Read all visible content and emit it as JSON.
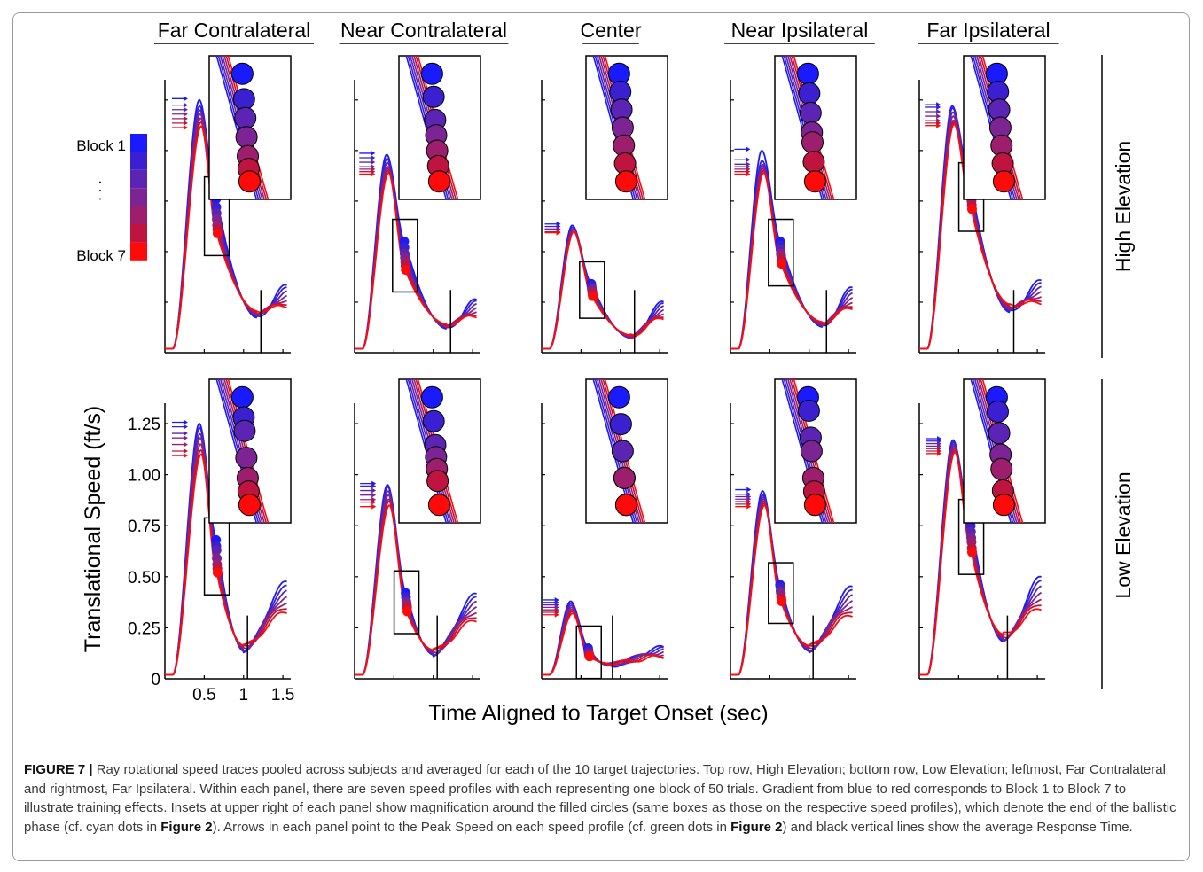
{
  "chart_data": {
    "type": "line",
    "title": "",
    "columns": [
      "Far Contralateral",
      "Near Contralateral",
      "Center",
      "Near Ipsilateral",
      "Far Ipsilateral"
    ],
    "rows": [
      "High Elevation",
      "Low Elevation"
    ],
    "xlabel": "Time Aligned to Target Onset (sec)",
    "ylabel": "Translational Speed (ft/s)",
    "x_ticks": [
      "0.5",
      "1",
      "1.5"
    ],
    "y_ticks": [
      "0",
      "0.25",
      "0.50",
      "0.75",
      "1.00",
      "1.25"
    ],
    "xlim": [
      0,
      1.6
    ],
    "ylim": [
      0,
      1.35
    ],
    "legend": {
      "top_label": "Block 1",
      "ellipsis": ". . .",
      "bottom_label": "Block 7",
      "colors": [
        "#1a1aff",
        "#3a20d0",
        "#5c24b4",
        "#7c2494",
        "#9c1e6c",
        "#c01440",
        "#ff0a0a"
      ]
    },
    "series_names": [
      "Block 1",
      "Block 2",
      "Block 3",
      "Block 4",
      "Block 5",
      "Block 6",
      "Block 7"
    ],
    "panels": [
      {
        "row": "High Elevation",
        "column": "Far Contralateral",
        "peak_time": 0.45,
        "peak_speeds": [
          1.25,
          1.22,
          1.2,
          1.18,
          1.16,
          1.14,
          1.12
        ],
        "end_time": 0.66,
        "end_speeds": [
          0.76,
          0.72,
          0.69,
          0.66,
          0.63,
          0.61,
          0.59
        ],
        "response_time": 1.22,
        "trough_speed": 0.19,
        "final_speed": 0.28
      },
      {
        "row": "High Elevation",
        "column": "Near Contralateral",
        "peak_time": 0.42,
        "peak_speeds": [
          0.98,
          0.96,
          0.94,
          0.92,
          0.91,
          0.9,
          0.89
        ],
        "end_time": 0.64,
        "end_speeds": [
          0.55,
          0.52,
          0.49,
          0.47,
          0.45,
          0.43,
          0.41
        ],
        "response_time": 1.22,
        "trough_speed": 0.13,
        "final_speed": 0.22
      },
      {
        "row": "High Elevation",
        "column": "Center",
        "peak_time": 0.4,
        "peak_speeds": [
          0.63,
          0.62,
          0.61,
          0.61,
          0.6,
          0.6,
          0.6
        ],
        "end_time": 0.64,
        "end_speeds": [
          0.34,
          0.33,
          0.32,
          0.31,
          0.3,
          0.29,
          0.28
        ],
        "response_time": 1.18,
        "trough_speed": 0.08,
        "final_speed": 0.21
      },
      {
        "row": "High Elevation",
        "column": "Near Ipsilateral",
        "peak_time": 0.41,
        "peak_speeds": [
          1.0,
          0.95,
          0.93,
          0.92,
          0.91,
          0.9,
          0.89
        ],
        "end_time": 0.64,
        "end_speeds": [
          0.55,
          0.53,
          0.51,
          0.49,
          0.48,
          0.46,
          0.44
        ],
        "response_time": 1.22,
        "trough_speed": 0.14,
        "final_speed": 0.27
      },
      {
        "row": "High Elevation",
        "column": "Far Ipsilateral",
        "peak_time": 0.43,
        "peak_speeds": [
          1.22,
          1.21,
          1.19,
          1.17,
          1.15,
          1.14,
          1.13
        ],
        "end_time": 0.66,
        "end_speeds": [
          0.83,
          0.81,
          0.79,
          0.77,
          0.75,
          0.73,
          0.71
        ],
        "response_time": 1.2,
        "trough_speed": 0.22,
        "final_speed": 0.3
      },
      {
        "row": "Low Elevation",
        "column": "Far Contralateral",
        "peak_time": 0.45,
        "peak_speeds": [
          1.25,
          1.23,
          1.2,
          1.18,
          1.15,
          1.12,
          1.1
        ],
        "end_time": 0.66,
        "end_speeds": [
          0.68,
          0.65,
          0.63,
          0.59,
          0.56,
          0.54,
          0.52
        ],
        "response_time": 1.05,
        "trough_speed": 0.15,
        "final_speed": 0.4
      },
      {
        "row": "Low Elevation",
        "column": "Near Contralateral",
        "peak_time": 0.43,
        "peak_speeds": [
          0.95,
          0.94,
          0.92,
          0.9,
          0.88,
          0.87,
          0.85
        ],
        "end_time": 0.66,
        "end_speeds": [
          0.42,
          0.4,
          0.38,
          0.37,
          0.36,
          0.35,
          0.33
        ],
        "response_time": 1.05,
        "trough_speed": 0.13,
        "final_speed": 0.35
      },
      {
        "row": "Low Elevation",
        "column": "Center",
        "peak_time": 0.38,
        "peak_speeds": [
          0.38,
          0.37,
          0.36,
          0.35,
          0.34,
          0.33,
          0.32
        ],
        "end_time": 0.6,
        "end_speeds": [
          0.15,
          0.14,
          0.13,
          0.12,
          0.12,
          0.11,
          0.11
        ],
        "response_time": 0.9,
        "trough_speed": 0.07,
        "final_speed": 0.13
      },
      {
        "row": "Low Elevation",
        "column": "Near Ipsilateral",
        "peak_time": 0.42,
        "peak_speeds": [
          0.92,
          0.9,
          0.89,
          0.88,
          0.87,
          0.86,
          0.85
        ],
        "end_time": 0.64,
        "end_speeds": [
          0.46,
          0.45,
          0.43,
          0.42,
          0.4,
          0.39,
          0.38
        ],
        "response_time": 1.05,
        "trough_speed": 0.15,
        "final_speed": 0.38
      },
      {
        "row": "Low Elevation",
        "column": "Far Ipsilateral",
        "peak_time": 0.44,
        "peak_speeds": [
          1.17,
          1.16,
          1.15,
          1.14,
          1.13,
          1.12,
          1.11
        ],
        "end_time": 0.66,
        "end_speeds": [
          0.77,
          0.75,
          0.72,
          0.69,
          0.67,
          0.64,
          0.62
        ],
        "response_time": 1.12,
        "trough_speed": 0.2,
        "final_speed": 0.42
      }
    ],
    "grid": false
  },
  "caption": {
    "figure_label": "FIGURE 7 |",
    "text_1": " Ray rotational speed traces pooled across subjects and averaged for each of the 10 target trajectories. Top row, High Elevation; bottom row, Low Elevation; leftmost, Far Contralateral and rightmost, Far Ipsilateral. Within each panel, there are seven speed profiles with each representing one block of 50 trials. Gradient from blue to red corresponds to Block 1 to Block 7 to illustrate training effects. Insets at upper right of each panel show magnification around the filled circles (same boxes as those on the respective speed profiles), which denote the end of the ballistic phase (cf. cyan dots in ",
    "ref_1": "Figure 2",
    "text_2": "). Arrows in each panel point to the Peak Speed on each speed profile (cf. green dots in ",
    "ref_2": "Figure 2",
    "text_3": ") and black vertical lines show the average Response Time."
  }
}
